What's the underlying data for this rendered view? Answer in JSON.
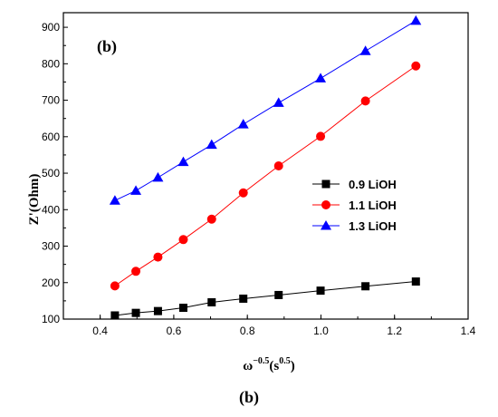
{
  "caption": "(b)",
  "chart_data": {
    "type": "line",
    "panel_label": "(b)",
    "xlabel": "ω",
    "xlabel_sup": "−0.5",
    "xlabel_mid": "(s",
    "xlabel_sup2": "0.5",
    "xlabel_end": ")",
    "ylabel": "Z'(Ohm)",
    "xlim": [
      0.3,
      1.4
    ],
    "ylim": [
      100,
      940
    ],
    "xticks": [
      0.4,
      0.6,
      0.8,
      1.0,
      1.2,
      1.4
    ],
    "xtick_labels": [
      "0.4",
      "0.6",
      "0.8",
      "1.0",
      "1.2",
      "1.4"
    ],
    "yticks": [
      100,
      200,
      300,
      400,
      500,
      600,
      700,
      800,
      900
    ],
    "ytick_labels": [
      "100",
      "200",
      "300",
      "400",
      "500",
      "600",
      "700",
      "800",
      "900"
    ],
    "grid": false,
    "legend_position": "right-middle",
    "series": [
      {
        "name": "0.9 LiOH",
        "color": "#000000",
        "marker": "square",
        "x": [
          0.44,
          0.497,
          0.557,
          0.626,
          0.703,
          0.789,
          0.885,
          0.999,
          1.121,
          1.258
        ],
        "y": [
          110,
          117,
          122,
          131,
          146,
          156,
          166,
          178,
          190,
          203
        ]
      },
      {
        "name": "1.1 LiOH",
        "color": "#ff0000",
        "marker": "circle",
        "x": [
          0.44,
          0.497,
          0.557,
          0.626,
          0.703,
          0.789,
          0.885,
          0.999,
          1.121,
          1.258
        ],
        "y": [
          191,
          231,
          270,
          318,
          374,
          446,
          520,
          601,
          698,
          794
        ]
      },
      {
        "name": "1.3 LiOH",
        "color": "#0000ff",
        "marker": "triangle",
        "x": [
          0.44,
          0.497,
          0.557,
          0.626,
          0.703,
          0.789,
          0.885,
          0.999,
          1.121,
          1.258
        ],
        "y": [
          425,
          452,
          488,
          531,
          578,
          634,
          693,
          760,
          835,
          918
        ]
      }
    ]
  }
}
